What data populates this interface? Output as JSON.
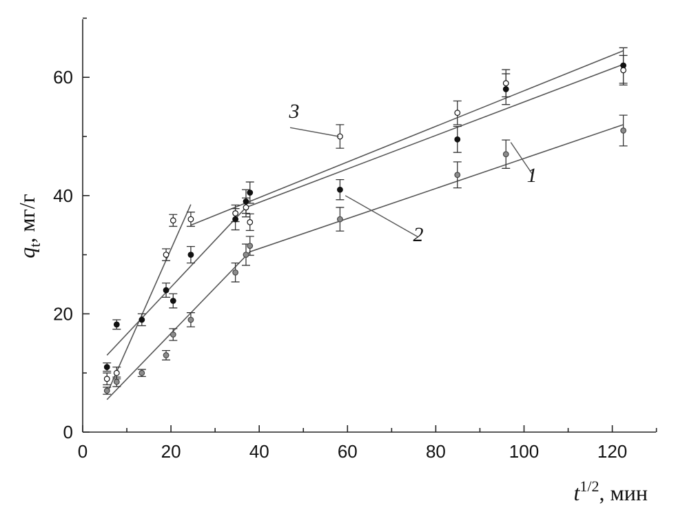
{
  "chart_data": {
    "type": "scatter",
    "xlabel_var": "t",
    "xlabel_sup": "1/2",
    "xlabel_unit": ", мин",
    "ylabel_var": "q",
    "ylabel_sub": "t",
    "ylabel_unit": ", мг/г",
    "xlim": [
      0,
      130
    ],
    "ylim": [
      0,
      70
    ],
    "xticks": [
      0,
      20,
      40,
      60,
      80,
      100,
      120
    ],
    "yticks": [
      0,
      20,
      40,
      60
    ],
    "grid": false,
    "series": [
      {
        "name": "1",
        "marker": "gray-filled",
        "color": "#8c8c8c",
        "x": [
          5.5,
          7.7,
          13.4,
          18.9,
          20.5,
          24.5,
          34.6,
          37.0,
          37.9,
          58.3,
          84.9,
          95.9,
          122.5
        ],
        "y": [
          7.0,
          8.5,
          10.0,
          13.0,
          16.5,
          19.0,
          27.0,
          30.0,
          31.5,
          36.0,
          43.5,
          47.0,
          51.0
        ],
        "err": [
          0.6,
          0.8,
          0.6,
          0.8,
          1.0,
          1.2,
          1.6,
          1.8,
          1.6,
          2.0,
          2.2,
          2.4,
          2.6
        ],
        "fit": [
          {
            "x": [
              5.5,
              37.9
            ],
            "y": [
              5.5,
              30.5
            ]
          },
          {
            "x": [
              37.9,
              122.5
            ],
            "y": [
              30.5,
              52.0
            ]
          }
        ]
      },
      {
        "name": "2",
        "marker": "black-filled",
        "color": "#111111",
        "x": [
          5.5,
          7.7,
          13.4,
          18.9,
          20.5,
          24.5,
          34.6,
          37.0,
          37.9,
          58.3,
          84.9,
          95.9,
          122.5
        ],
        "y": [
          11.0,
          18.2,
          19.0,
          24.0,
          22.2,
          30.0,
          36.0,
          39.0,
          40.5,
          41.0,
          49.5,
          58.0,
          62.0
        ],
        "err": [
          0.7,
          0.8,
          1.0,
          1.2,
          1.2,
          1.4,
          1.8,
          2.0,
          1.8,
          1.7,
          2.2,
          2.6,
          3.0
        ],
        "fit": [
          {
            "x": [
              5.5,
              37.0
            ],
            "y": [
              13.0,
              38.0
            ]
          },
          {
            "x": [
              37.0,
              122.5
            ],
            "y": [
              38.0,
              62.2
            ]
          }
        ]
      },
      {
        "name": "3",
        "marker": "open-circle",
        "color": "#ffffff",
        "x": [
          5.5,
          7.7,
          18.9,
          20.5,
          24.5,
          34.6,
          37.0,
          37.9,
          58.3,
          84.9,
          95.9,
          122.5
        ],
        "y": [
          9.0,
          10.0,
          30.0,
          35.8,
          36.0,
          37.0,
          38.0,
          35.5,
          50.0,
          54.0,
          59.0,
          61.2
        ],
        "err": [
          1.0,
          1.0,
          1.0,
          1.0,
          1.2,
          1.4,
          1.6,
          1.4,
          2.0,
          2.0,
          2.3,
          2.5
        ],
        "fit": [
          {
            "x": [
              5.5,
              24.5
            ],
            "y": [
              6.5,
              38.5
            ]
          },
          {
            "x": [
              24.5,
              122.5
            ],
            "y": [
              35.0,
              64.5
            ]
          }
        ]
      }
    ],
    "labels": [
      {
        "text": "1",
        "series": "1",
        "at": [
          102,
          43.5
        ],
        "to": [
          97,
          49
        ]
      },
      {
        "text": "2",
        "series": "2",
        "at": [
          76,
          33
        ],
        "to": [
          59.5,
          40
        ]
      },
      {
        "text": "3",
        "series": "3",
        "at": [
          47,
          51.5
        ],
        "to": [
          58,
          50
        ]
      }
    ]
  }
}
